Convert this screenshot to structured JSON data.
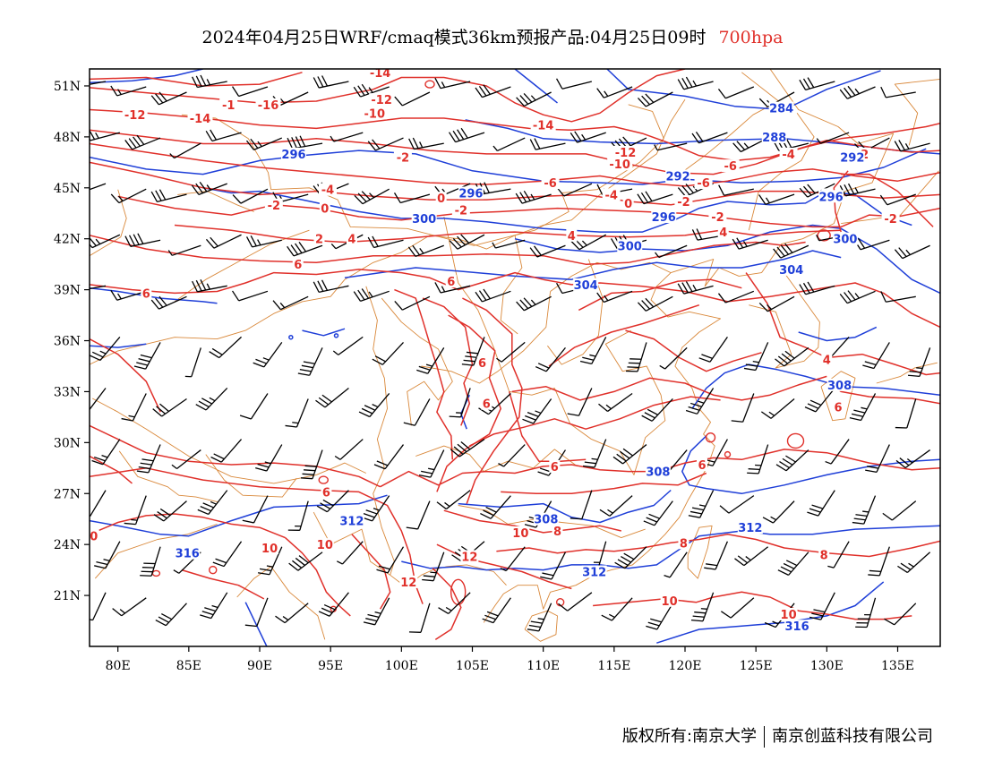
{
  "title": {
    "main": "2024年04月25日WRF/cmaq模式36km预报产品:04月25日09时",
    "level": "700hpa"
  },
  "axes": {
    "lat_labels": [
      "51N",
      "48N",
      "45N",
      "42N",
      "39N",
      "36N",
      "33N",
      "30N",
      "27N",
      "24N",
      "21N"
    ],
    "lat_values": [
      51,
      48,
      45,
      42,
      39,
      36,
      33,
      30,
      27,
      24,
      21
    ],
    "lon_labels": [
      "80E",
      "85E",
      "90E",
      "95E",
      "100E",
      "105E",
      "110E",
      "115E",
      "120E",
      "125E",
      "130E",
      "135E"
    ],
    "lon_values": [
      80,
      85,
      90,
      95,
      100,
      105,
      110,
      115,
      120,
      125,
      130,
      135
    ],
    "lon_range": [
      78,
      138
    ],
    "lat_range": [
      18,
      52
    ]
  },
  "colors": {
    "temperature": "#e0302a",
    "height": "#1f3fd8",
    "borders": "#d9883a",
    "wind": "#000000",
    "frame": "#000000"
  },
  "temperature_labels": [
    {
      "text": "-14",
      "lon": 98.5,
      "lat": 51.8
    },
    {
      "text": "-12",
      "lon": 98.6,
      "lat": 50.2
    },
    {
      "text": "-1",
      "lon": 87.8,
      "lat": 49.9
    },
    {
      "text": "-16",
      "lon": 90.6,
      "lat": 49.9
    },
    {
      "text": "-12",
      "lon": 81.2,
      "lat": 49.3
    },
    {
      "text": "-14",
      "lon": 85.8,
      "lat": 49.1
    },
    {
      "text": "-10",
      "lon": 98.1,
      "lat": 49.4
    },
    {
      "text": "-14",
      "lon": 110.0,
      "lat": 48.7
    },
    {
      "text": "-12",
      "lon": 115.8,
      "lat": 47.1
    },
    {
      "text": "-10",
      "lon": 115.4,
      "lat": 46.4
    },
    {
      "text": "-2",
      "lon": 100.1,
      "lat": 46.8
    },
    {
      "text": "-6",
      "lon": 110.5,
      "lat": 45.3
    },
    {
      "text": "-4",
      "lon": 94.8,
      "lat": 44.9
    },
    {
      "text": "0",
      "lon": 102.8,
      "lat": 44.4
    },
    {
      "text": "-2",
      "lon": 91.0,
      "lat": 44.0
    },
    {
      "text": "0",
      "lon": 94.6,
      "lat": 43.8
    },
    {
      "text": "-2",
      "lon": 104.2,
      "lat": 43.7
    },
    {
      "text": "-4",
      "lon": 114.8,
      "lat": 44.6
    },
    {
      "text": "0",
      "lon": 116.0,
      "lat": 44.1
    },
    {
      "text": "-2",
      "lon": 119.9,
      "lat": 44.2
    },
    {
      "text": "-6",
      "lon": 121.3,
      "lat": 45.3
    },
    {
      "text": "-6",
      "lon": 123.2,
      "lat": 46.3
    },
    {
      "text": "-4",
      "lon": 127.3,
      "lat": 47.0
    },
    {
      "text": "-2",
      "lon": 132.5,
      "lat": 47.0
    },
    {
      "text": "-2",
      "lon": 122.3,
      "lat": 43.3
    },
    {
      "text": "0",
      "lon": 130.0,
      "lat": 44.6
    },
    {
      "text": "-2",
      "lon": 134.5,
      "lat": 43.2
    },
    {
      "text": "2",
      "lon": 94.2,
      "lat": 42.0
    },
    {
      "text": "4",
      "lon": 96.5,
      "lat": 42.0
    },
    {
      "text": "6",
      "lon": 92.7,
      "lat": 40.5
    },
    {
      "text": "4",
      "lon": 112.0,
      "lat": 42.2
    },
    {
      "text": "4",
      "lon": 122.7,
      "lat": 42.4
    },
    {
      "text": "6",
      "lon": 82.0,
      "lat": 38.8
    },
    {
      "text": "6",
      "lon": 103.5,
      "lat": 39.5
    },
    {
      "text": "6",
      "lon": 105.7,
      "lat": 34.7
    },
    {
      "text": "6",
      "lon": 106.0,
      "lat": 32.3
    },
    {
      "text": "6",
      "lon": 94.7,
      "lat": 27.1
    },
    {
      "text": "6",
      "lon": 110.8,
      "lat": 28.6
    },
    {
      "text": "6",
      "lon": 121.2,
      "lat": 28.7
    },
    {
      "text": "6",
      "lon": 130.8,
      "lat": 32.1
    },
    {
      "text": "4",
      "lon": 130.0,
      "lat": 34.9
    },
    {
      "text": "8",
      "lon": 111.0,
      "lat": 24.8
    },
    {
      "text": "8",
      "lon": 119.9,
      "lat": 24.1
    },
    {
      "text": "8",
      "lon": 129.8,
      "lat": 23.4
    },
    {
      "text": "0",
      "lon": 78.3,
      "lat": 24.5
    },
    {
      "text": "10",
      "lon": 90.7,
      "lat": 23.8
    },
    {
      "text": "10",
      "lon": 94.6,
      "lat": 24.0
    },
    {
      "text": "10",
      "lon": 108.4,
      "lat": 24.7
    },
    {
      "text": "12",
      "lon": 104.8,
      "lat": 23.3
    },
    {
      "text": "12",
      "lon": 100.5,
      "lat": 21.8
    },
    {
      "text": "10",
      "lon": 118.9,
      "lat": 20.7
    },
    {
      "text": "10",
      "lon": 127.3,
      "lat": 19.9
    }
  ],
  "height_labels": [
    {
      "text": "284",
      "lon": 126.8,
      "lat": 49.7
    },
    {
      "text": "288",
      "lon": 126.3,
      "lat": 48.0
    },
    {
      "text": "296",
      "lon": 92.4,
      "lat": 47.0
    },
    {
      "text": "292",
      "lon": 131.8,
      "lat": 46.8
    },
    {
      "text": "292",
      "lon": 119.5,
      "lat": 45.7
    },
    {
      "text": "296",
      "lon": 104.9,
      "lat": 44.7
    },
    {
      "text": "296",
      "lon": 130.3,
      "lat": 44.5
    },
    {
      "text": "300",
      "lon": 101.6,
      "lat": 43.2
    },
    {
      "text": "296",
      "lon": 118.5,
      "lat": 43.3
    },
    {
      "text": "300",
      "lon": 116.1,
      "lat": 41.6
    },
    {
      "text": "300",
      "lon": 131.3,
      "lat": 42.0
    },
    {
      "text": "304",
      "lon": 127.5,
      "lat": 40.2
    },
    {
      "text": "304",
      "lon": 113.0,
      "lat": 39.3
    },
    {
      "text": "308",
      "lon": 130.9,
      "lat": 33.4
    },
    {
      "text": "308",
      "lon": 118.1,
      "lat": 28.3
    },
    {
      "text": "312",
      "lon": 96.5,
      "lat": 25.4
    },
    {
      "text": "308",
      "lon": 110.2,
      "lat": 25.5
    },
    {
      "text": "312",
      "lon": 124.6,
      "lat": 25.0
    },
    {
      "text": "312",
      "lon": 113.6,
      "lat": 22.4
    },
    {
      "text": "316",
      "lon": 84.9,
      "lat": 23.5
    },
    {
      "text": "316",
      "lon": 127.9,
      "lat": 19.2
    }
  ],
  "footer": {
    "left": "版权所有:南京大学",
    "right": "南京创蓝科技有限公司"
  }
}
